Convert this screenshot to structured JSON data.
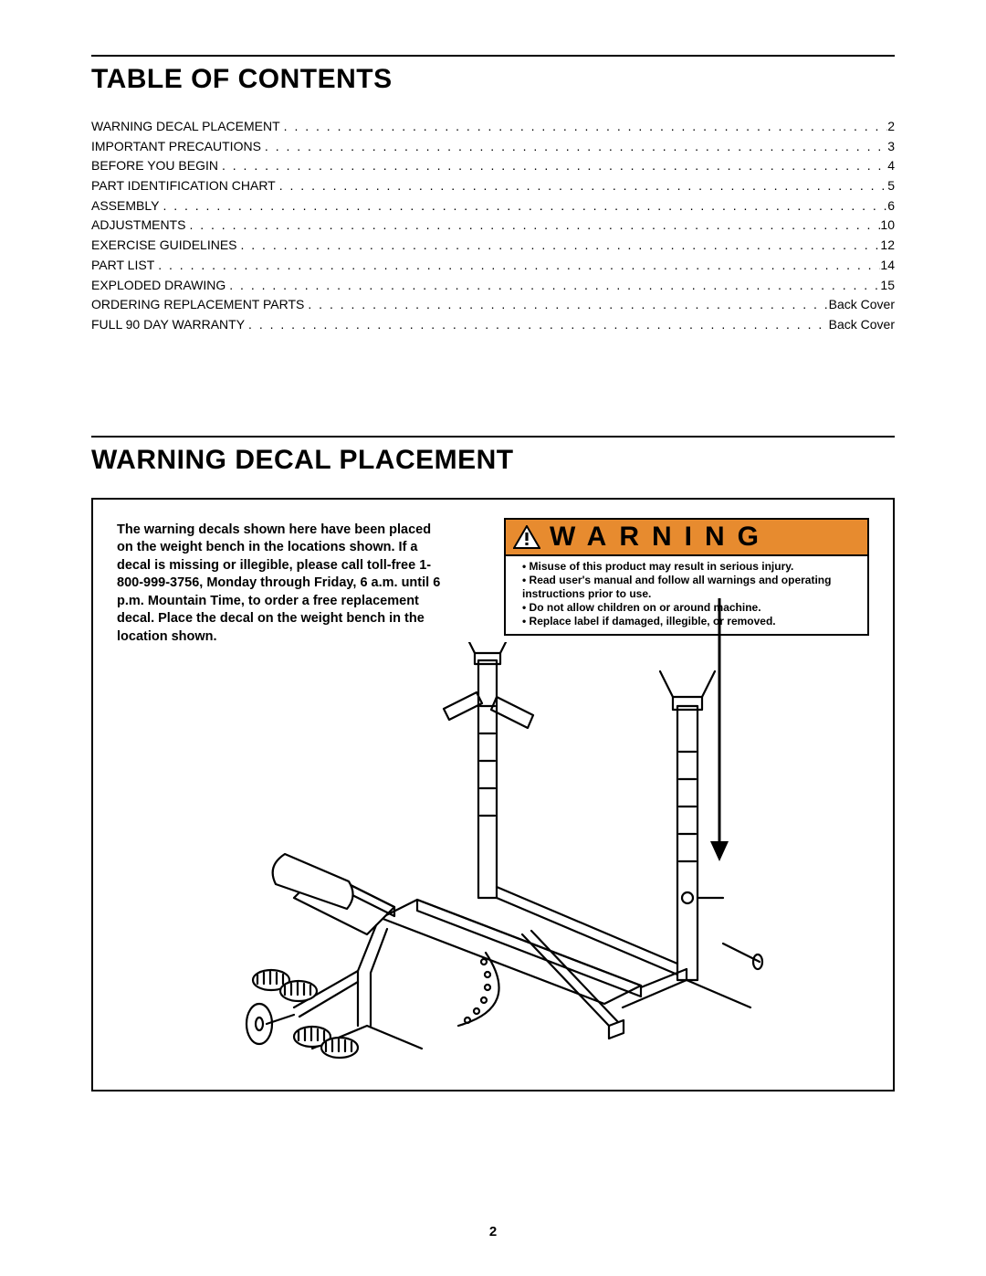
{
  "toc": {
    "heading": "TABLE OF CONTENTS",
    "items": [
      {
        "label": "WARNING DECAL PLACEMENT",
        "page": "2"
      },
      {
        "label": "IMPORTANT PRECAUTIONS",
        "page": "3"
      },
      {
        "label": "BEFORE YOU BEGIN",
        "page": "4"
      },
      {
        "label": "PART IDENTIFICATION CHART",
        "page": "5"
      },
      {
        "label": "ASSEMBLY",
        "page": "6"
      },
      {
        "label": "ADJUSTMENTS",
        "page": "10"
      },
      {
        "label": "EXERCISE GUIDELINES",
        "page": "12"
      },
      {
        "label": "PART LIST",
        "page": "14"
      },
      {
        "label": "EXPLODED DRAWING",
        "page": "15"
      },
      {
        "label": "ORDERING REPLACEMENT PARTS",
        "page": "Back Cover"
      },
      {
        "label": "FULL 90 DAY WARRANTY",
        "page": "Back Cover"
      }
    ]
  },
  "decal": {
    "heading": "WARNING DECAL PLACEMENT",
    "intro": "The warning decals shown here have been placed on the weight bench in the locations shown. If a decal is missing or illegible, please call toll-free 1-800-999-3756, Monday through Friday, 6 a.m. until 6 p.m. Mountain Time, to order a free replacement decal. Place the decal on the weight bench in the location shown."
  },
  "warningLabel": {
    "title": "WARNING",
    "bullets": [
      "Misuse of this product may result in serious injury.",
      "Read user's manual and follow all warnings and operating instructions prior to use.",
      "Do not allow children on or around machine.",
      "Replace label if damaged, illegible, or  removed."
    ],
    "headerBg": "#e78b2f"
  },
  "pageNumber": "2"
}
